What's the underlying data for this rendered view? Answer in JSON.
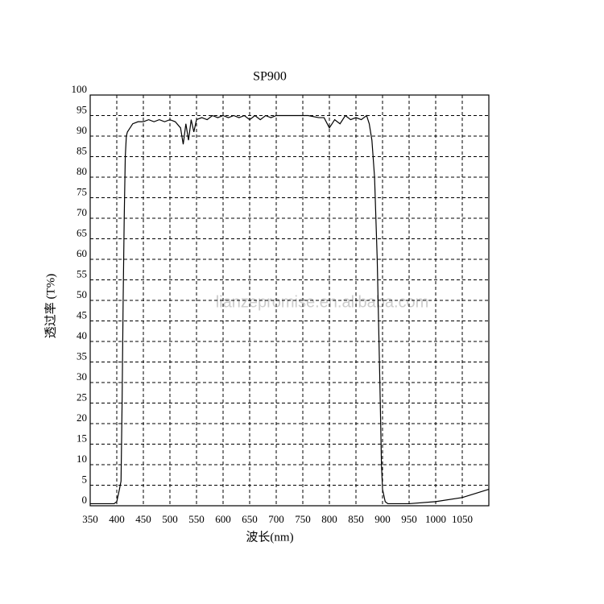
{
  "chart_data": {
    "type": "line",
    "title": "SP900",
    "x_label": "波长(nm)",
    "y_label": "透过率 (T%)",
    "watermark": "lianzepromise.en.alibaba.com",
    "xlim": [
      350,
      1100
    ],
    "xticks": [
      350,
      400,
      450,
      500,
      550,
      600,
      650,
      700,
      750,
      800,
      850,
      900,
      950,
      1000,
      1050
    ],
    "ylim": [
      0,
      100
    ],
    "yticks": [
      0,
      5,
      10,
      15,
      20,
      25,
      30,
      35,
      40,
      45,
      50,
      55,
      60,
      65,
      70,
      75,
      80,
      85,
      90,
      95,
      100
    ],
    "grid": true,
    "color": "#000000",
    "x": [
      350,
      395,
      400,
      405,
      408,
      410,
      412,
      414,
      416,
      418,
      420,
      425,
      430,
      440,
      450,
      460,
      470,
      480,
      490,
      500,
      510,
      520,
      525,
      530,
      535,
      540,
      545,
      550,
      560,
      570,
      580,
      590,
      600,
      610,
      620,
      630,
      640,
      650,
      660,
      670,
      680,
      690,
      700,
      720,
      740,
      760,
      780,
      790,
      800,
      810,
      820,
      830,
      840,
      850,
      860,
      870,
      875,
      880,
      885,
      890,
      895,
      898,
      900,
      905,
      910,
      950,
      1000,
      1050,
      1100
    ],
    "values": [
      0.5,
      0.5,
      1,
      4,
      6,
      25,
      50,
      70,
      85,
      90,
      91,
      92,
      93,
      93.5,
      93.5,
      94,
      93.5,
      94,
      93.5,
      94,
      93.5,
      92,
      88,
      93,
      89,
      94,
      91,
      94,
      94.5,
      94,
      95,
      94.5,
      95,
      94.5,
      95,
      94.5,
      95,
      94,
      95,
      94,
      95,
      94.5,
      95,
      95,
      95,
      95,
      94.5,
      94.5,
      92,
      94,
      93,
      95,
      94,
      94.5,
      94,
      95,
      93,
      89,
      80,
      60,
      30,
      10,
      4,
      1,
      0.5,
      0.5,
      1,
      2,
      4
    ]
  }
}
